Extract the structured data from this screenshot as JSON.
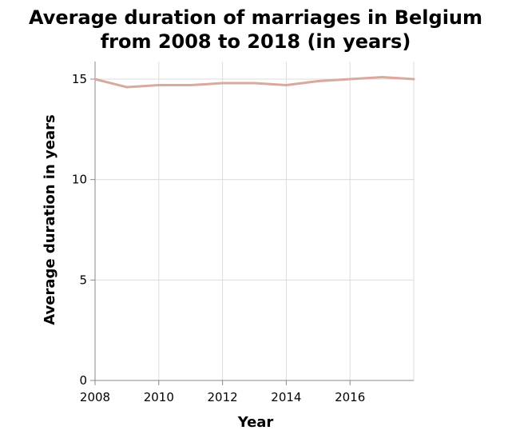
{
  "chart_data": {
    "type": "line",
    "title_lines": [
      "Average duration of marriages in Belgium",
      "from 2008 to 2018 (in years)"
    ],
    "xlabel": "Year",
    "ylabel": "Average duration in years",
    "x": [
      2008,
      2009,
      2010,
      2011,
      2012,
      2013,
      2014,
      2015,
      2016,
      2017,
      2018
    ],
    "series": [
      {
        "values": [
          15.0,
          14.6,
          14.7,
          14.7,
          14.8,
          14.8,
          14.7,
          14.9,
          15.0,
          15.1,
          15.0
        ],
        "color": "#d9a99e"
      }
    ],
    "xlim": [
      2008,
      2018
    ],
    "ylim": [
      0,
      15
    ],
    "xticks": [
      2008,
      2010,
      2012,
      2014,
      2016
    ],
    "xtick_labels": [
      "2008",
      "2010",
      "2012",
      "2014",
      "2016"
    ],
    "yticks": [
      0,
      5,
      10,
      15
    ],
    "ytick_labels": [
      "0",
      "5",
      "10",
      "15"
    ],
    "grid": true,
    "grid_color": "#dddddd",
    "axis_color": "#888888"
  }
}
